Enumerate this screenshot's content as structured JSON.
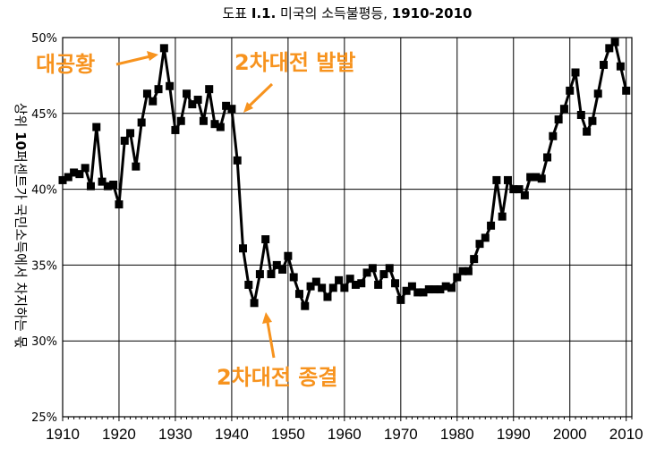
{
  "chart_data": {
    "type": "line",
    "title_prefix": "도표 ",
    "title_bold_a": "I.1.",
    "title_mid": " 미국의 소득불평등, ",
    "title_bold_b": "1910-2010",
    "ylabel_a": "상위 ",
    "ylabel_bold": "10",
    "ylabel_b": "퍼센트가 국민소득에서 차지하는 몫",
    "ylim": [
      25,
      50
    ],
    "xlim": [
      1910,
      2011
    ],
    "yticks": [
      "25%",
      "30%",
      "35%",
      "40%",
      "45%",
      "50%"
    ],
    "xticks": [
      "1910",
      "1920",
      "1930",
      "1940",
      "1950",
      "1960",
      "1970",
      "1980",
      "1990",
      "2000",
      "2010"
    ],
    "grid": true,
    "series": [
      {
        "color": "#000000",
        "x": [
          1910,
          1911,
          1912,
          1913,
          1914,
          1915,
          1916,
          1917,
          1918,
          1919,
          1920,
          1921,
          1922,
          1923,
          1924,
          1925,
          1926,
          1927,
          1928,
          1929,
          1930,
          1931,
          1932,
          1933,
          1934,
          1935,
          1936,
          1937,
          1938,
          1939,
          1940,
          1941,
          1942,
          1943,
          1944,
          1945,
          1946,
          1947,
          1948,
          1949,
          1950,
          1951,
          1952,
          1953,
          1954,
          1955,
          1956,
          1957,
          1958,
          1959,
          1960,
          1961,
          1962,
          1963,
          1964,
          1965,
          1966,
          1967,
          1968,
          1969,
          1970,
          1971,
          1972,
          1973,
          1974,
          1975,
          1976,
          1977,
          1978,
          1979,
          1980,
          1981,
          1982,
          1983,
          1984,
          1985,
          1986,
          1987,
          1988,
          1989,
          1990,
          1991,
          1992,
          1993,
          1994,
          1995,
          1996,
          1997,
          1998,
          1999,
          2000,
          2001,
          2002,
          2003,
          2004,
          2005,
          2006,
          2007,
          2008,
          2009,
          2010
        ],
        "y": [
          40.6,
          40.8,
          41.1,
          41.0,
          41.4,
          40.2,
          44.1,
          40.5,
          40.2,
          40.3,
          39.0,
          43.2,
          43.7,
          41.5,
          44.4,
          46.3,
          45.8,
          46.6,
          49.3,
          46.8,
          43.9,
          44.5,
          46.3,
          45.6,
          45.9,
          44.5,
          46.6,
          44.3,
          44.1,
          45.5,
          45.3,
          41.9,
          36.1,
          33.7,
          32.5,
          34.4,
          36.7,
          34.4,
          35.0,
          34.7,
          35.6,
          34.2,
          33.1,
          32.3,
          33.6,
          33.9,
          33.5,
          32.9,
          33.5,
          34.0,
          33.5,
          34.1,
          33.7,
          33.8,
          34.5,
          34.8,
          33.7,
          34.4,
          34.8,
          33.8,
          32.7,
          33.3,
          33.6,
          33.2,
          33.2,
          33.4,
          33.4,
          33.4,
          33.6,
          33.5,
          34.2,
          34.6,
          34.6,
          35.4,
          36.4,
          36.8,
          37.6,
          40.6,
          38.2,
          40.6,
          40.0,
          40.0,
          39.6,
          40.8,
          40.8,
          40.7,
          42.1,
          43.5,
          44.6,
          45.3,
          46.5,
          47.7,
          44.9,
          43.8,
          44.5,
          46.3,
          48.2,
          49.3,
          49.7,
          48.1,
          46.5
        ]
      }
    ],
    "annotations": [
      {
        "text": "대공황"
      },
      {
        "text": "2차대전 발발"
      },
      {
        "text": "2차대전 종결"
      }
    ],
    "annotation_color": "#f7931e"
  }
}
